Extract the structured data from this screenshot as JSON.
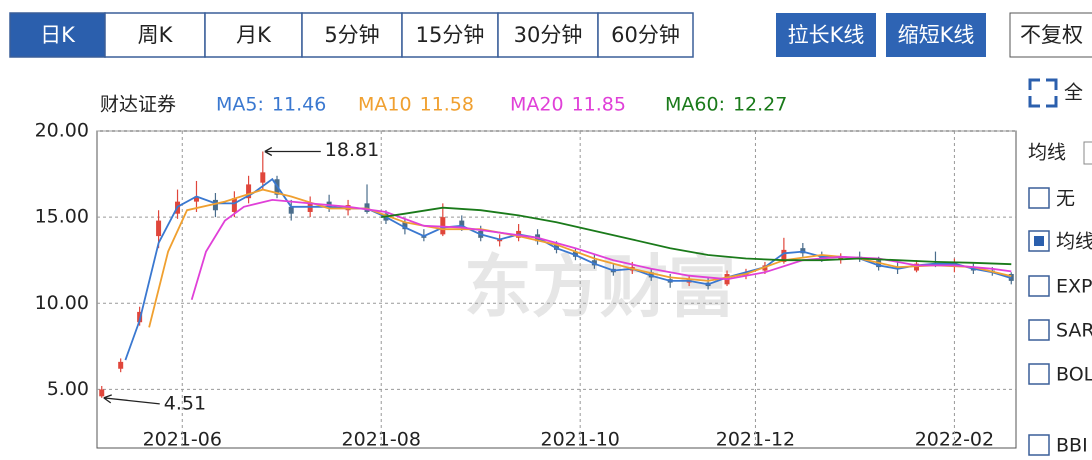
{
  "toolbar": {
    "tabs": [
      "日K",
      "周K",
      "月K",
      "5分钟",
      "15分钟",
      "30分钟",
      "60分钟"
    ],
    "selected": 0,
    "buttons": [
      "拉长K线",
      "缩短K线"
    ],
    "dropdown": "不复权"
  },
  "side_panel": {
    "fullscreen": "全",
    "ma_header": "均线",
    "options": [
      "无",
      "均线",
      "EXP",
      "SAR",
      "BOL",
      "BBI"
    ],
    "checked": 1
  },
  "chart_data": {
    "type": "candlestick",
    "name": "财达证券",
    "watermark": "东方财富",
    "up_color": "#e0463b",
    "down_color": "#4a6d8c",
    "xlim": [
      -1,
      193
    ],
    "ylim": [
      1.6,
      20
    ],
    "xticks": [
      {
        "value": 17,
        "label": "2021-06"
      },
      {
        "value": 59,
        "label": "2021-08"
      },
      {
        "value": 101,
        "label": "2021-10"
      },
      {
        "value": 138,
        "label": "2021-12"
      },
      {
        "value": 180,
        "label": "2022-02"
      }
    ],
    "yticks": [
      {
        "value": 20,
        "label": "20.00"
      },
      {
        "value": 15,
        "label": "15.00"
      },
      {
        "value": 10,
        "label": "10.00"
      },
      {
        "value": 5,
        "label": "5.00"
      }
    ],
    "grid": true,
    "max_label": "18.81",
    "min_label": "4.51",
    "x": [
      0,
      4,
      8,
      12,
      16,
      20,
      24,
      28,
      31,
      34,
      37,
      40,
      44,
      48,
      52,
      56,
      60,
      64,
      68,
      72,
      76,
      80,
      84,
      88,
      92,
      96,
      100,
      104,
      108,
      112,
      116,
      120,
      124,
      128,
      132,
      136,
      140,
      144,
      148,
      152,
      156,
      160,
      164,
      168,
      172,
      176,
      180,
      184,
      188,
      192
    ],
    "open": [
      4.6,
      6.2,
      8.9,
      13.9,
      15.2,
      15.9,
      16.0,
      15.3,
      16.1,
      17.0,
      17.2,
      15.6,
      15.3,
      15.9,
      15.4,
      15.8,
      15.2,
      14.7,
      13.9,
      14.0,
      14.8,
      14.2,
      13.6,
      13.8,
      14.0,
      13.4,
      13.0,
      12.5,
      12.0,
      11.9,
      11.8,
      11.4,
      11.2,
      11.2,
      11.1,
      11.6,
      11.9,
      12.4,
      13.2,
      12.8,
      12.6,
      12.7,
      12.5,
      12.1,
      11.9,
      12.3,
      12.2,
      12.1,
      11.9,
      11.7
    ],
    "high": [
      5.2,
      6.8,
      9.8,
      15.4,
      16.6,
      17.1,
      16.4,
      16.5,
      17.4,
      18.81,
      17.4,
      16.0,
      16.2,
      16.3,
      16.0,
      16.9,
      15.4,
      14.9,
      14.3,
      15.8,
      15.1,
      14.5,
      14.0,
      14.6,
      14.3,
      13.6,
      13.2,
      12.8,
      12.3,
      12.4,
      12.0,
      11.7,
      11.6,
      11.5,
      11.9,
      12.0,
      12.4,
      13.8,
      13.5,
      13.0,
      12.9,
      13.0,
      12.7,
      12.4,
      12.5,
      13.0,
      12.6,
      12.3,
      12.1,
      11.8
    ],
    "low": [
      4.51,
      6.0,
      8.7,
      13.2,
      14.9,
      15.3,
      15.0,
      15.0,
      15.8,
      16.6,
      16.1,
      14.8,
      15.0,
      15.3,
      15.1,
      15.2,
      14.6,
      14.0,
      13.6,
      13.9,
      14.2,
      13.6,
      13.3,
      13.6,
      13.4,
      12.9,
      12.5,
      12.0,
      11.6,
      11.7,
      11.3,
      10.9,
      11.0,
      10.8,
      11.0,
      11.4,
      11.7,
      12.3,
      12.7,
      12.4,
      12.3,
      12.4,
      11.9,
      11.7,
      11.8,
      12.1,
      11.8,
      11.7,
      11.6,
      11.1
    ],
    "close": [
      5.0,
      6.6,
      9.5,
      14.8,
      15.9,
      16.2,
      15.4,
      16.1,
      16.9,
      17.6,
      16.3,
      15.2,
      15.8,
      15.5,
      15.7,
      15.3,
      14.8,
      14.3,
      13.8,
      15.0,
      14.4,
      13.8,
      13.7,
      14.2,
      13.6,
      13.1,
      12.7,
      12.2,
      11.8,
      12.1,
      11.5,
      11.2,
      11.4,
      11.0,
      11.7,
      11.8,
      12.2,
      13.1,
      12.9,
      12.6,
      12.7,
      12.6,
      12.1,
      12.0,
      12.3,
      12.2,
      12.4,
      11.9,
      11.8,
      11.3
    ],
    "lines": [
      {
        "name": "MA5:",
        "last": 11.46,
        "color": "#3a78d0",
        "x": [
          5,
          8,
          12,
          16,
          20,
          24,
          28,
          32,
          36,
          40,
          44,
          48,
          52,
          56,
          60,
          64,
          68,
          72,
          76,
          80,
          84,
          88,
          92,
          96,
          100,
          104,
          108,
          112,
          116,
          120,
          124,
          128,
          132,
          136,
          140,
          144,
          148,
          152,
          156,
          160,
          164,
          168,
          172,
          176,
          180,
          184,
          188,
          192
        ],
        "values": [
          6.7,
          9.0,
          13.5,
          15.6,
          16.2,
          15.8,
          15.8,
          16.4,
          17.2,
          15.6,
          15.6,
          15.6,
          15.5,
          15.5,
          15.0,
          14.4,
          13.9,
          14.4,
          14.5,
          14.0,
          13.7,
          14.0,
          13.8,
          13.2,
          12.8,
          12.3,
          11.9,
          12.0,
          11.6,
          11.3,
          11.3,
          11.1,
          11.5,
          11.8,
          12.1,
          12.9,
          13.0,
          12.7,
          12.7,
          12.6,
          12.2,
          12.0,
          12.2,
          12.3,
          12.3,
          12.0,
          11.8,
          11.46
        ]
      },
      {
        "name": "MA10",
        "last": 11.58,
        "color": "#f0a030",
        "x": [
          10,
          14,
          18,
          26,
          34,
          40,
          48,
          56,
          64,
          72,
          80,
          88,
          96,
          104,
          112,
          120,
          128,
          136,
          144,
          152,
          160,
          168,
          176,
          184,
          192
        ],
        "values": [
          8.6,
          13.0,
          15.4,
          15.9,
          16.6,
          16.2,
          15.5,
          15.5,
          14.7,
          14.3,
          14.3,
          13.9,
          13.4,
          12.6,
          12.0,
          11.5,
          11.3,
          11.7,
          12.5,
          12.8,
          12.6,
          12.1,
          12.2,
          12.1,
          11.58
        ]
      },
      {
        "name": "MA20",
        "last": 11.85,
        "color": "#e040d8",
        "x": [
          19,
          22,
          26,
          30,
          36,
          44,
          52,
          60,
          68,
          76,
          84,
          92,
          100,
          108,
          116,
          124,
          132,
          140,
          148,
          156,
          164,
          172,
          180,
          188,
          192
        ],
        "values": [
          10.2,
          13.0,
          14.8,
          15.6,
          16.0,
          15.8,
          15.6,
          15.3,
          14.5,
          14.4,
          14.1,
          13.8,
          13.2,
          12.5,
          12.0,
          11.6,
          11.4,
          11.8,
          12.5,
          12.7,
          12.6,
          12.2,
          12.2,
          12.0,
          11.85
        ]
      },
      {
        "name": "MA60:",
        "last": 12.27,
        "color": "#1a7a1a",
        "x": [
          59,
          64,
          72,
          80,
          88,
          96,
          104,
          112,
          120,
          128,
          136,
          144,
          152,
          160,
          168,
          176,
          184,
          192
        ],
        "values": [
          15.0,
          15.2,
          15.55,
          15.4,
          15.1,
          14.7,
          14.2,
          13.7,
          13.2,
          12.8,
          12.6,
          12.5,
          12.5,
          12.6,
          12.5,
          12.4,
          12.35,
          12.27
        ]
      }
    ]
  }
}
